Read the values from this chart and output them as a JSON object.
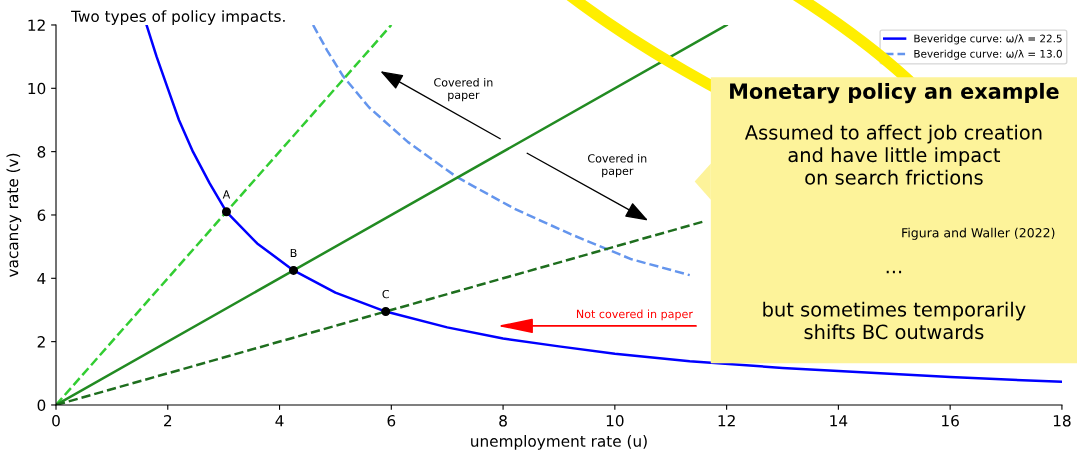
{
  "chart_data": {
    "type": "line",
    "subtitle": "Two types of policy impacts.",
    "xlabel": "unemployment rate (u)",
    "ylabel": "vacancy rate (v)",
    "xlim": [
      0,
      18
    ],
    "ylim": [
      0,
      12
    ],
    "xticks": [
      0,
      2,
      4,
      6,
      8,
      10,
      12,
      14,
      16,
      18
    ],
    "yticks": [
      0,
      2,
      4,
      6,
      8,
      10,
      12
    ],
    "grid": false,
    "legend": "top right",
    "series": [
      {
        "name": "Beveridge curve: ω/λ = 22.5",
        "color": "#0000ff",
        "line_style": "solid",
        "x": [
          1.62,
          1.8,
          2.0,
          2.2,
          2.45,
          2.75,
          3.05,
          3.6,
          4.25,
          5.0,
          5.9,
          7.0,
          8.0,
          9.0,
          10.0,
          11.34,
          13.0,
          14.0,
          16.0,
          18.0
        ],
        "values": [
          12,
          11,
          10,
          9,
          8,
          7,
          6.1,
          5.1,
          4.25,
          3.55,
          2.95,
          2.45,
          2.1,
          1.85,
          1.62,
          1.38,
          1.17,
          1.07,
          0.88,
          0.73
        ]
      },
      {
        "name": "Beveridge curve: ω/λ = 13.0",
        "color": "#6495ed",
        "line_style": "dashed",
        "x": [
          4.6,
          4.85,
          5.13,
          5.6,
          6.3,
          7.17,
          8.2,
          9.2,
          10.3,
          11.34
        ],
        "values": [
          12,
          11.2,
          10.4,
          9.4,
          8.3,
          7.2,
          6.2,
          5.4,
          4.6,
          4.1
        ]
      },
      {
        "color": "#32cd32",
        "line_style": "dashed",
        "x": [
          0,
          6
        ],
        "values": [
          0,
          12
        ]
      },
      {
        "color": "#228b22",
        "line_style": "solid",
        "x": [
          0,
          12
        ],
        "values": [
          0,
          12
        ]
      },
      {
        "color": "#1e6e1e",
        "line_style": "dashed",
        "x": [
          0,
          11.6
        ],
        "values": [
          0,
          5.8
        ]
      },
      {
        "type": "scatter",
        "color": "#000000",
        "marker": "circle",
        "x": [
          3.05,
          4.25,
          5.9
        ],
        "values": [
          6.1,
          4.25,
          2.95
        ]
      }
    ],
    "annotations": [
      {
        "text": "A",
        "x": 3.05,
        "y": 6.1
      },
      {
        "text": "B",
        "x": 4.25,
        "y": 4.25
      },
      {
        "text": "C",
        "x": 5.9,
        "y": 2.95
      },
      "Covered in\npaper",
      "Covered in\npaper",
      "Not covered in paper",
      "Monetary policy an example",
      "Assumed to affect job creation\nand have little impact\non search frictions",
      "Figura and Waller (2022)",
      "...",
      "but sometimes temporarily\nshifts BC outwards"
    ]
  }
}
